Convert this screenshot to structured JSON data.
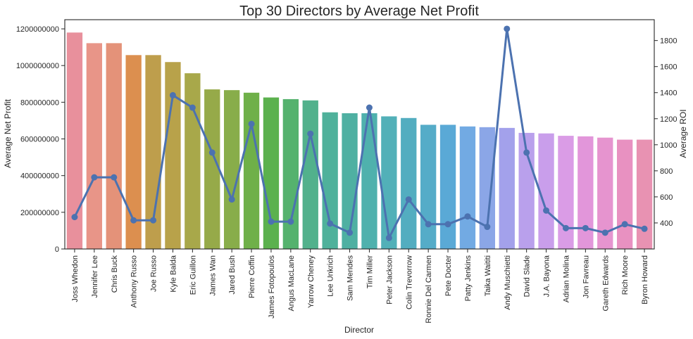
{
  "chart_data": {
    "type": "bar",
    "title": "Top 30 Directors by Average Net Profit",
    "xlabel": "Director",
    "ylabel": "Average Net Profit",
    "y2label": "Average ROI",
    "ylim": [
      0,
      1250000000
    ],
    "y2lim": [
      200,
      1960
    ],
    "yticks": [
      "0",
      "200000000",
      "400000000",
      "600000000",
      "800000000",
      "1000000000",
      "1200000000"
    ],
    "y2ticks": [
      "400",
      "600",
      "800",
      "1000",
      "1200",
      "1400",
      "1600",
      "1800"
    ],
    "grid": false,
    "categories": [
      "Joss Whedon",
      "Jennifer Lee",
      "Chris Buck",
      "Anthony Russo",
      "Joe Russo",
      "Kyle Balda",
      "Eric Guillon",
      "James Wan",
      "Jared Bush",
      "Pierre Coffin",
      "James Fotopoulos",
      "Angus MacLane",
      "Yarrow Cheney",
      "Lee Unkrich",
      "Sam Mendes",
      "Tim Miller",
      "Peter Jackson",
      "Colin Trevorrow",
      "Ronnie Del Carmen",
      "Pete Docter",
      "Patty Jenkins",
      "Taika Waititi",
      "Andy Muschietti",
      "David Slade",
      "J.A. Bayona",
      "Adrian Molina",
      "Jon Favreau",
      "Gareth Edwards",
      "Rich Moore",
      "Byron Howard"
    ],
    "series": [
      {
        "name": "Average Net Profit",
        "type": "bar",
        "axis": "left",
        "values": [
          1180000000,
          1122000000,
          1122000000,
          1057000000,
          1057000000,
          1019000000,
          958000000,
          870000000,
          866000000,
          852000000,
          826000000,
          817000000,
          810000000,
          745000000,
          740000000,
          740000000,
          723000000,
          714000000,
          677000000,
          677000000,
          668000000,
          664000000,
          660000000,
          633000000,
          630000000,
          617000000,
          614000000,
          607000000,
          596000000,
          596000000
        ]
      },
      {
        "name": "Average ROI",
        "type": "line",
        "axis": "right",
        "color": "#4c72b0",
        "values": [
          445,
          750,
          750,
          420,
          420,
          1380,
          1285,
          940,
          580,
          1160,
          410,
          410,
          1085,
          395,
          325,
          1285,
          285,
          580,
          390,
          390,
          450,
          370,
          1890,
          940,
          495,
          360,
          360,
          325,
          390,
          355
        ]
      }
    ],
    "bar_colors": [
      "#e8909c",
      "#e89588",
      "#e49279",
      "#dc8f4f",
      "#be9e4c",
      "#b8a24a",
      "#a8a84a",
      "#96aa49",
      "#88ad4a",
      "#6fb049",
      "#5bb14e",
      "#55b26e",
      "#52b18c",
      "#4fb19b",
      "#4fb0a2",
      "#4fb1ad",
      "#52b0b8",
      "#53adc0",
      "#55acc8",
      "#5aa9d6",
      "#72aae3",
      "#8ba6e7",
      "#a3a1eb",
      "#b9a0ec",
      "#c99eeb",
      "#da9ce6",
      "#e296da",
      "#e694cf",
      "#e891c1",
      "#e892b2"
    ]
  }
}
